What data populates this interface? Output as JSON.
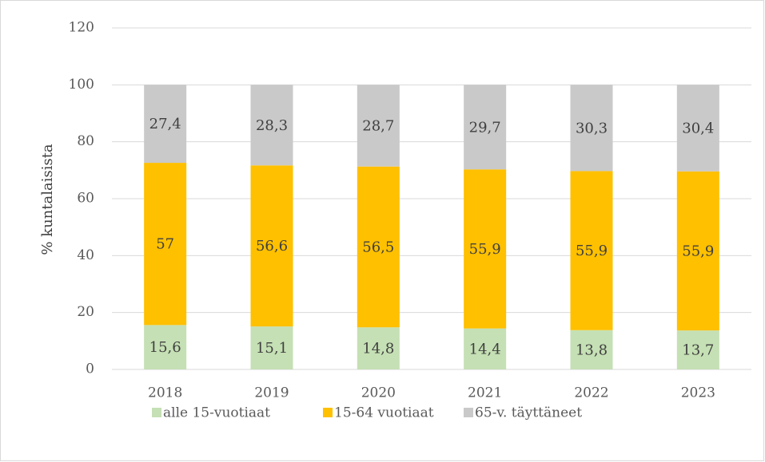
{
  "chart_data": {
    "type": "stacked_bar",
    "y_label": "% kuntalaisista",
    "categories": [
      "2018",
      "2019",
      "2020",
      "2021",
      "2022",
      "2023"
    ],
    "series": [
      {
        "name": "alle 15-vuotiaat",
        "color": "#c5e0b4",
        "values": [
          15.6,
          15.1,
          14.8,
          14.4,
          13.8,
          13.7
        ],
        "value_labels": [
          "15,6",
          "15,1",
          "14,8",
          "14,4",
          "13,8",
          "13,7"
        ]
      },
      {
        "name": "15-64 vuotiaat",
        "color": "#ffc000",
        "values": [
          57,
          56.6,
          56.5,
          55.9,
          55.9,
          55.9
        ],
        "value_labels": [
          "57",
          "56,6",
          "56,5",
          "55,9",
          "55,9",
          "55,9"
        ]
      },
      {
        "name": "65-v. täyttäneet",
        "color": "#c9c9c9",
        "values": [
          27.4,
          28.3,
          28.7,
          29.7,
          30.3,
          30.4
        ],
        "value_labels": [
          "27,4",
          "28,3",
          "28,7",
          "29,7",
          "30,3",
          "30,4"
        ]
      }
    ],
    "ylim": [
      0,
      120
    ],
    "yticks": [
      0,
      20,
      40,
      60,
      80,
      100,
      120
    ],
    "grid": true,
    "legend": "bottom"
  }
}
